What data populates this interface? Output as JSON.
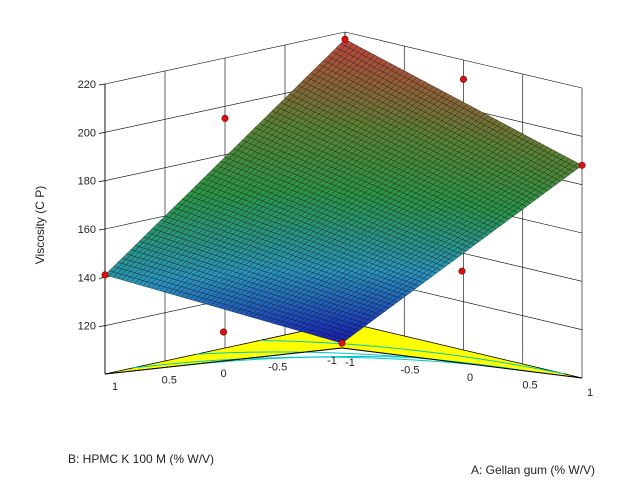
{
  "chart_data": {
    "type": "surface",
    "xlabel": "A: Gellan gum (% W/V)",
    "ylabel": "B: HPMC K 100 M (% W/V)",
    "zlabel": "Viscosity (C P)",
    "x_ticks": [
      "-1",
      "-0.5",
      "0",
      "0.5",
      "1"
    ],
    "y_ticks": [
      "-1",
      "-0.5",
      "0",
      "0.5",
      "1"
    ],
    "z_ticks": [
      "120",
      "140",
      "160",
      "180",
      "200",
      "220"
    ],
    "xlim": [
      -1,
      1
    ],
    "ylim": [
      -1,
      1
    ],
    "zlim": [
      100,
      220
    ],
    "grid": true,
    "surface_corners": [
      {
        "x": -1,
        "y": -1,
        "z": 102
      },
      {
        "x": 1,
        "y": -1,
        "z": 188
      },
      {
        "x": 1,
        "y": 1,
        "z": 217
      },
      {
        "x": -1,
        "y": 1,
        "z": 141
      }
    ],
    "design_points": [
      {
        "x": -1,
        "y": -1,
        "z": 102
      },
      {
        "x": 1,
        "y": -1,
        "z": 188
      },
      {
        "x": 1,
        "y": 1,
        "z": 217
      },
      {
        "x": -1,
        "y": 1,
        "z": 141
      },
      {
        "x": 0,
        "y": 1,
        "z": 195
      },
      {
        "x": 1,
        "y": 0,
        "z": 212
      },
      {
        "x": -1,
        "y": 0,
        "z": 112
      },
      {
        "x": 0,
        "y": -1,
        "z": 138
      }
    ],
    "colors": {
      "floor": "#ffff00",
      "contour": "#00c8c8",
      "points": "#e01010",
      "low": "#1010c0",
      "high": "#c03030"
    }
  }
}
